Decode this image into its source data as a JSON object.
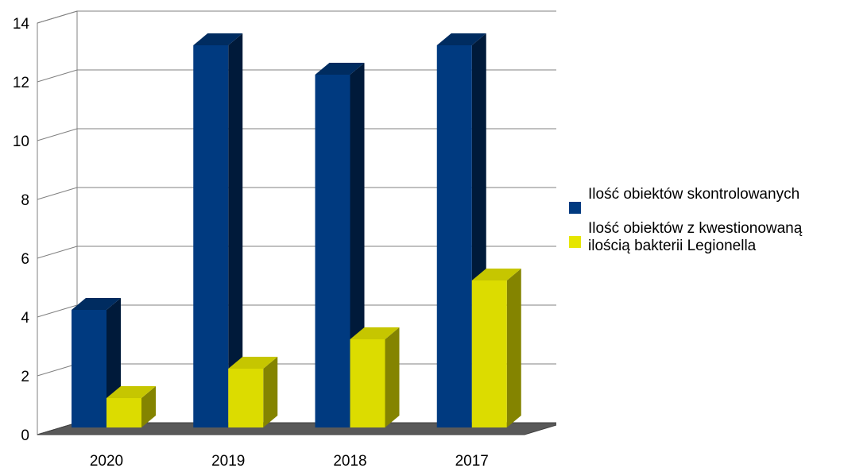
{
  "chart_data": {
    "type": "bar",
    "title": "",
    "xlabel": "",
    "ylabel": "",
    "categories": [
      "2020",
      "2019",
      "2018",
      "2017"
    ],
    "series": [
      {
        "name": "Ilość obiektów skontrolowanych",
        "values": [
          4,
          13,
          12,
          13
        ],
        "color": "#003a80"
      },
      {
        "name": "Ilość obiektów z kwestionowaną ilością bakterii Legionella",
        "values": [
          1,
          2,
          3,
          5
        ],
        "color": "#dcdc00"
      }
    ],
    "ylim": [
      0,
      14
    ],
    "yticks": [
      0,
      2,
      4,
      6,
      8,
      10,
      12,
      14
    ],
    "grid": true,
    "legend": "right",
    "three_d": true,
    "floor_color": "#595959"
  }
}
